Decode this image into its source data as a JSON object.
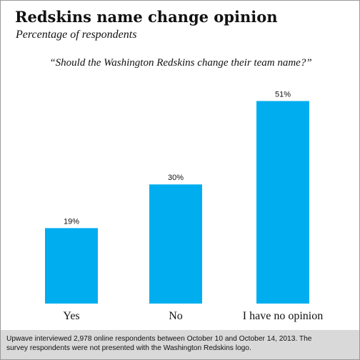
{
  "chart_data": {
    "type": "bar",
    "title": "Redskins name change opinion",
    "subtitle": "Percentage of respondents",
    "question": "“Should the Washington Redskins change their team name?”",
    "categories": [
      "Yes",
      "No",
      "I have no opinion"
    ],
    "values": [
      19,
      30,
      51
    ],
    "value_labels": [
      "19%",
      "30%",
      "51%"
    ],
    "unit": "%",
    "ylim": [
      0,
      55
    ],
    "grid": false,
    "color": "#00aeef"
  },
  "footnote": {
    "line1": "Upwave interviewed 2,978 online respondents between October 10 and October 14, 2013. The",
    "line2": "survey respondents were not presented with the Washington Redskins logo."
  }
}
